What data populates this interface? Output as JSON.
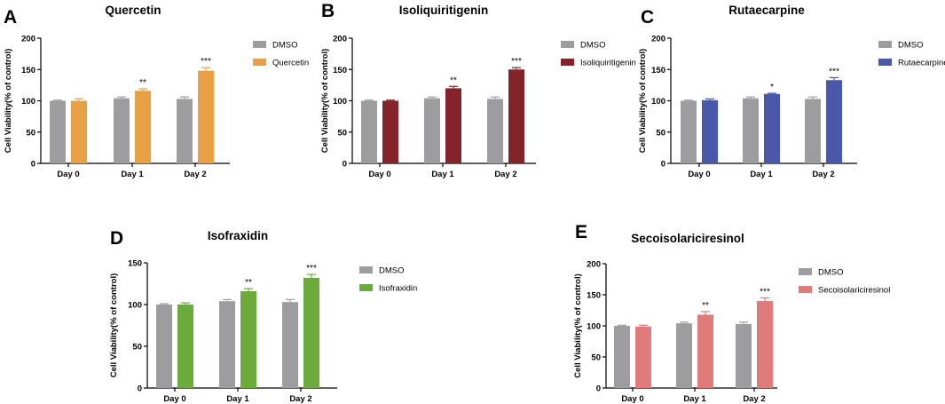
{
  "figure": {
    "colors": {
      "dmso": "#9d9d9f",
      "axis": "#000000"
    }
  },
  "chart_data": [
    {
      "type": "bar",
      "panel_label": "A",
      "title": "Quercetin",
      "ylabel": "Cell Viability(% of control)",
      "xlabel": "",
      "ylim": [
        0,
        200
      ],
      "yticks": [
        0,
        50,
        100,
        150,
        200
      ],
      "categories": [
        "Day 0",
        "Day 1",
        "Day 2"
      ],
      "series": [
        {
          "name": "DMSO",
          "color": "#9d9d9f",
          "values": [
            100,
            104,
            103
          ],
          "errors": [
            1,
            2,
            3
          ]
        },
        {
          "name": "Quercetin",
          "color": "#e8a045",
          "values": [
            100,
            116,
            148
          ],
          "errors": [
            3,
            3,
            5
          ]
        }
      ],
      "annotations": [
        "",
        "**",
        "***"
      ],
      "legend_position": "top-right"
    },
    {
      "type": "bar",
      "panel_label": "B",
      "title": "Isoliquiritigenin",
      "ylabel": "Cell Viability(% of control)",
      "xlabel": "",
      "ylim": [
        0,
        200
      ],
      "yticks": [
        0,
        50,
        100,
        150,
        200
      ],
      "categories": [
        "Day 0",
        "Day 1",
        "Day 2"
      ],
      "series": [
        {
          "name": "DMSO",
          "color": "#9d9d9f",
          "values": [
            100,
            104,
            103
          ],
          "errors": [
            1,
            2,
            3
          ]
        },
        {
          "name": "Isoliquiritigenin",
          "color": "#84242a",
          "values": [
            100,
            120,
            150
          ],
          "errors": [
            1,
            3,
            3
          ]
        }
      ],
      "annotations": [
        "",
        "**",
        "***"
      ],
      "legend_position": "top-right"
    },
    {
      "type": "bar",
      "panel_label": "C",
      "title": "Rutaecarpine",
      "ylabel": "Cell Viability(% of control)",
      "xlabel": "",
      "ylim": [
        0,
        200
      ],
      "yticks": [
        0,
        50,
        100,
        150,
        200
      ],
      "categories": [
        "Day 0",
        "Day 1",
        "Day 2"
      ],
      "series": [
        {
          "name": "DMSO",
          "color": "#9d9d9f",
          "values": [
            100,
            104,
            103
          ],
          "errors": [
            1,
            2,
            3
          ]
        },
        {
          "name": "Rutaecarpine",
          "color": "#4a58a9",
          "values": [
            101,
            111,
            133
          ],
          "errors": [
            2,
            1,
            4
          ]
        }
      ],
      "annotations": [
        "",
        "*",
        "***"
      ],
      "legend_position": "top-right"
    },
    {
      "type": "bar",
      "panel_label": "D",
      "title": "Isofraxidin",
      "ylabel": "Cell Viability(% of control)",
      "xlabel": "",
      "ylim": [
        0,
        150
      ],
      "yticks": [
        0,
        50,
        100,
        150
      ],
      "categories": [
        "Day 0",
        "Day 1",
        "Day 2"
      ],
      "series": [
        {
          "name": "DMSO",
          "color": "#9d9d9f",
          "values": [
            100,
            104,
            103
          ],
          "errors": [
            1,
            2,
            3
          ]
        },
        {
          "name": "Isofraxidin",
          "color": "#6aab3c",
          "values": [
            100,
            116,
            132
          ],
          "errors": [
            2,
            3,
            4
          ]
        }
      ],
      "annotations": [
        "",
        "**",
        "***"
      ],
      "legend_position": "top-right"
    },
    {
      "type": "bar",
      "panel_label": "E",
      "title": "Secoisolariciresinol",
      "ylabel": "Cell Viability(% of control)",
      "xlabel": "",
      "ylim": [
        0,
        200
      ],
      "yticks": [
        0,
        50,
        100,
        150,
        200
      ],
      "categories": [
        "Day 0",
        "Day 1",
        "Day 2"
      ],
      "series": [
        {
          "name": "DMSO",
          "color": "#9d9d9f",
          "values": [
            100,
            104,
            103
          ],
          "errors": [
            1,
            2,
            3
          ]
        },
        {
          "name": "Secoisolariciresinol",
          "color": "#e07b7b",
          "values": [
            99,
            118,
            140
          ],
          "errors": [
            2,
            5,
            5
          ]
        }
      ],
      "annotations": [
        "",
        "**",
        "***"
      ],
      "legend_position": "top-right"
    }
  ]
}
